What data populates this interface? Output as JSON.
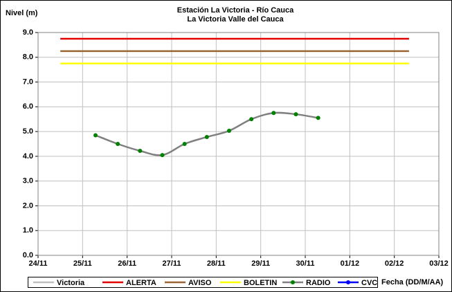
{
  "chart_data": {
    "type": "line",
    "title": "Estación La Victoria - Río Cauca",
    "subtitle": "La Victoria Valle del Cauca",
    "y_label": "Nivel (m)",
    "x_label": "Fecha (DD/M/AA)",
    "xlim": [
      0,
      9
    ],
    "xticks": [
      {
        "value": 0,
        "label": "24/11"
      },
      {
        "value": 1,
        "label": "25/11"
      },
      {
        "value": 2,
        "label": "26/11"
      },
      {
        "value": 3,
        "label": "27/11"
      },
      {
        "value": 4,
        "label": "28/11"
      },
      {
        "value": 5,
        "label": "29/11"
      },
      {
        "value": 6,
        "label": "30/11"
      },
      {
        "value": 7,
        "label": "01/12"
      },
      {
        "value": 8,
        "label": "02/12"
      },
      {
        "value": 9,
        "label": "03/12"
      }
    ],
    "ylim": [
      0,
      9
    ],
    "yticks": [
      {
        "value": 0,
        "label": "0.0"
      },
      {
        "value": 1,
        "label": "1.0"
      },
      {
        "value": 2,
        "label": "2.0"
      },
      {
        "value": 3,
        "label": "3.0"
      },
      {
        "value": 4,
        "label": "4.0"
      },
      {
        "value": 5,
        "label": "5.0"
      },
      {
        "value": 6,
        "label": "6.0"
      },
      {
        "value": 7,
        "label": "7.0"
      },
      {
        "value": 8,
        "label": "8.0"
      },
      {
        "value": 9,
        "label": "9.0"
      }
    ],
    "grid": true,
    "legend": "bottom",
    "series": [
      {
        "name": "Victoria",
        "color": "#c0c0c0",
        "x": [],
        "values": []
      },
      {
        "name": "ALERTA",
        "color": "#e00000",
        "x": [
          0.5,
          8.33
        ],
        "values": [
          8.75,
          8.75
        ]
      },
      {
        "name": "AVISO",
        "color": "#996633",
        "x": [
          0.5,
          8.33
        ],
        "values": [
          8.25,
          8.25
        ]
      },
      {
        "name": "BOLETIN",
        "color": "#ffff00",
        "x": [
          0.5,
          8.33
        ],
        "values": [
          7.75,
          7.75
        ]
      },
      {
        "name": "RADIO",
        "color": "#808080",
        "marker_color": "#008000",
        "x": [
          1.29,
          1.79,
          2.29,
          2.79,
          3.29,
          3.79,
          4.29,
          4.79,
          5.29,
          5.79,
          6.29
        ],
        "values": [
          4.85,
          4.5,
          4.22,
          4.05,
          4.5,
          4.78,
          5.03,
          5.5,
          5.75,
          5.7,
          5.55
        ]
      },
      {
        "name": "CVC",
        "color": "#0000ff",
        "marker_color": "#0000ff",
        "x": [],
        "values": []
      }
    ]
  }
}
